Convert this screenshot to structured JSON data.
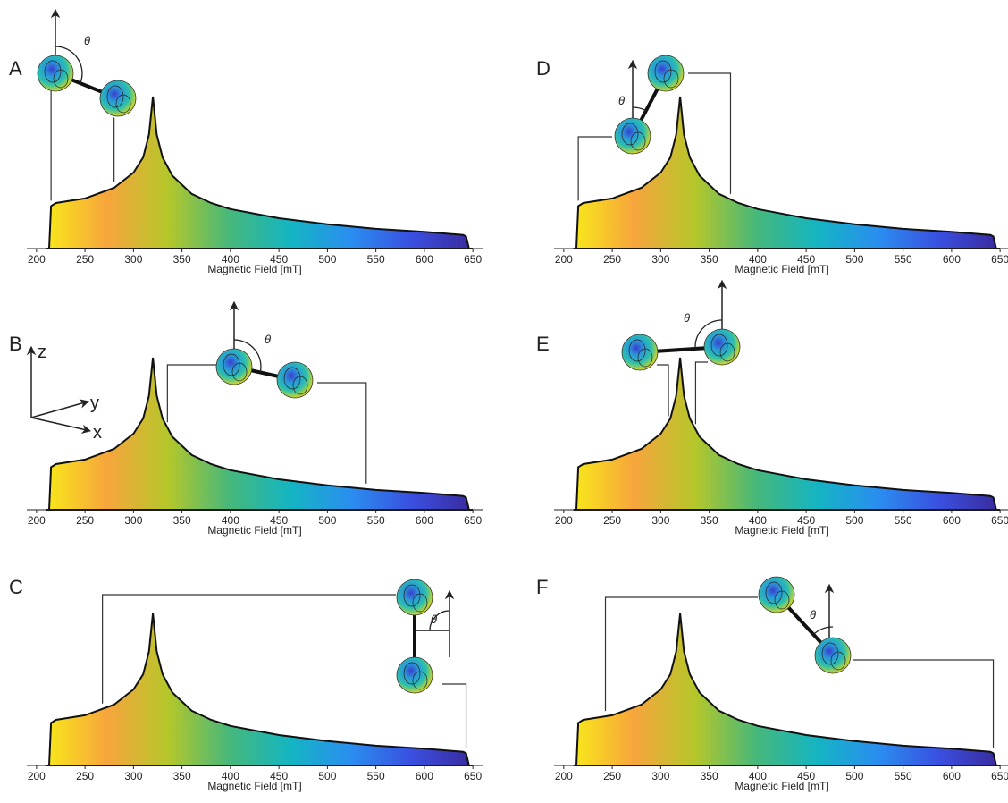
{
  "chart_data": [
    {
      "type": "area",
      "title": "A",
      "xlabel": "Magnetic Field [mT]",
      "theta_label": "θ",
      "x": [
        210,
        213,
        215,
        220,
        250,
        280,
        300,
        310,
        316,
        320,
        324,
        330,
        340,
        360,
        380,
        400,
        450,
        500,
        550,
        600,
        640,
        643,
        646,
        650
      ],
      "values": [
        0,
        0,
        0.28,
        0.3,
        0.33,
        0.4,
        0.5,
        0.6,
        0.75,
        1.0,
        0.75,
        0.6,
        0.48,
        0.36,
        0.3,
        0.26,
        0.2,
        0.16,
        0.13,
        0.11,
        0.09,
        0.08,
        0,
        0
      ],
      "xlim": [
        190,
        660
      ],
      "ylim": [
        0,
        1
      ],
      "xticks": [
        200,
        250,
        300,
        350,
        400,
        450,
        500,
        550,
        600,
        650
      ],
      "colors": [
        "#f8e81a",
        "#f7a53c",
        "#b5c72a",
        "#46b87a",
        "#14b5c2",
        "#2a8ef0",
        "#3a4fe0",
        "#3a2a9c"
      ],
      "markers": [
        215,
        280
      ]
    },
    {
      "type": "area",
      "title": "B",
      "xlabel": "Magnetic Field [mT]",
      "theta_label": "θ",
      "axis_labels": [
        "z",
        "y",
        "x"
      ],
      "x": [
        210,
        213,
        215,
        220,
        250,
        280,
        300,
        310,
        316,
        320,
        324,
        330,
        340,
        360,
        380,
        400,
        450,
        500,
        550,
        600,
        640,
        643,
        646,
        650
      ],
      "values": [
        0,
        0,
        0.28,
        0.3,
        0.33,
        0.4,
        0.5,
        0.6,
        0.75,
        1.0,
        0.75,
        0.6,
        0.48,
        0.36,
        0.3,
        0.26,
        0.2,
        0.16,
        0.13,
        0.11,
        0.09,
        0.08,
        0,
        0
      ],
      "xlim": [
        190,
        660
      ],
      "ylim": [
        0,
        1
      ],
      "xticks": [
        200,
        250,
        300,
        350,
        400,
        450,
        500,
        550,
        600,
        650
      ],
      "colors": [
        "#f8e81a",
        "#f7a53c",
        "#b5c72a",
        "#46b87a",
        "#14b5c2",
        "#2a8ef0",
        "#3a4fe0",
        "#3a2a9c"
      ],
      "markers": [
        335,
        540
      ]
    },
    {
      "type": "area",
      "title": "C",
      "xlabel": "Magnetic Field [mT]",
      "theta_label": "θ",
      "x": [
        210,
        213,
        215,
        220,
        250,
        280,
        300,
        310,
        316,
        320,
        324,
        330,
        340,
        360,
        380,
        400,
        450,
        500,
        550,
        600,
        640,
        643,
        646,
        650
      ],
      "values": [
        0,
        0,
        0.28,
        0.3,
        0.33,
        0.4,
        0.5,
        0.6,
        0.75,
        1.0,
        0.75,
        0.6,
        0.48,
        0.36,
        0.3,
        0.26,
        0.2,
        0.16,
        0.13,
        0.11,
        0.09,
        0.08,
        0,
        0
      ],
      "xlim": [
        190,
        660
      ],
      "ylim": [
        0,
        1
      ],
      "xticks": [
        200,
        250,
        300,
        350,
        400,
        450,
        500,
        550,
        600,
        650
      ],
      "colors": [
        "#f8e81a",
        "#f7a53c",
        "#b5c72a",
        "#46b87a",
        "#14b5c2",
        "#2a8ef0",
        "#3a4fe0",
        "#3a2a9c"
      ],
      "markers": [
        268,
        643
      ]
    },
    {
      "type": "area",
      "title": "D",
      "xlabel": "Magnetic Field [mT]",
      "theta_label": "θ",
      "x": [
        210,
        213,
        215,
        220,
        250,
        280,
        300,
        310,
        316,
        320,
        324,
        330,
        340,
        360,
        380,
        400,
        450,
        500,
        550,
        600,
        640,
        643,
        646,
        650
      ],
      "values": [
        0,
        0,
        0.28,
        0.3,
        0.33,
        0.4,
        0.5,
        0.6,
        0.75,
        1.0,
        0.75,
        0.6,
        0.48,
        0.36,
        0.3,
        0.26,
        0.2,
        0.16,
        0.13,
        0.11,
        0.09,
        0.08,
        0,
        0
      ],
      "xlim": [
        190,
        660
      ],
      "ylim": [
        0,
        1
      ],
      "xticks": [
        200,
        250,
        300,
        350,
        400,
        450,
        500,
        550,
        600,
        650
      ],
      "colors": [
        "#f8e81a",
        "#f7a53c",
        "#b5c72a",
        "#46b87a",
        "#14b5c2",
        "#2a8ef0",
        "#3a4fe0",
        "#3a2a9c"
      ],
      "markers": [
        215,
        372
      ]
    },
    {
      "type": "area",
      "title": "E",
      "xlabel": "Magnetic Field [mT]",
      "theta_label": "θ",
      "x": [
        210,
        213,
        215,
        220,
        250,
        280,
        300,
        310,
        316,
        320,
        324,
        330,
        340,
        360,
        380,
        400,
        450,
        500,
        550,
        600,
        640,
        643,
        646,
        650
      ],
      "values": [
        0,
        0,
        0.28,
        0.3,
        0.33,
        0.4,
        0.5,
        0.6,
        0.75,
        1.0,
        0.75,
        0.6,
        0.48,
        0.36,
        0.3,
        0.26,
        0.2,
        0.16,
        0.13,
        0.11,
        0.09,
        0.08,
        0,
        0
      ],
      "xlim": [
        190,
        660
      ],
      "ylim": [
        0,
        1
      ],
      "xticks": [
        200,
        250,
        300,
        350,
        400,
        450,
        500,
        550,
        600,
        650
      ],
      "colors": [
        "#f8e81a",
        "#f7a53c",
        "#b5c72a",
        "#46b87a",
        "#14b5c2",
        "#2a8ef0",
        "#3a4fe0",
        "#3a2a9c"
      ],
      "markers": [
        308,
        336
      ]
    },
    {
      "type": "area",
      "title": "F",
      "xlabel": "Magnetic Field [mT]",
      "theta_label": "θ",
      "x": [
        210,
        213,
        215,
        220,
        250,
        280,
        300,
        310,
        316,
        320,
        324,
        330,
        340,
        360,
        380,
        400,
        450,
        500,
        550,
        600,
        640,
        643,
        646,
        650
      ],
      "values": [
        0,
        0,
        0.28,
        0.3,
        0.33,
        0.4,
        0.5,
        0.6,
        0.75,
        1.0,
        0.75,
        0.6,
        0.48,
        0.36,
        0.3,
        0.26,
        0.2,
        0.16,
        0.13,
        0.11,
        0.09,
        0.08,
        0,
        0
      ],
      "xlim": [
        190,
        660
      ],
      "ylim": [
        0,
        1
      ],
      "xticks": [
        200,
        250,
        300,
        350,
        400,
        450,
        500,
        550,
        600,
        650
      ],
      "colors": [
        "#f8e81a",
        "#f7a53c",
        "#b5c72a",
        "#46b87a",
        "#14b5c2",
        "#2a8ef0",
        "#3a4fe0",
        "#3a2a9c"
      ],
      "markers": [
        243,
        643
      ]
    }
  ]
}
